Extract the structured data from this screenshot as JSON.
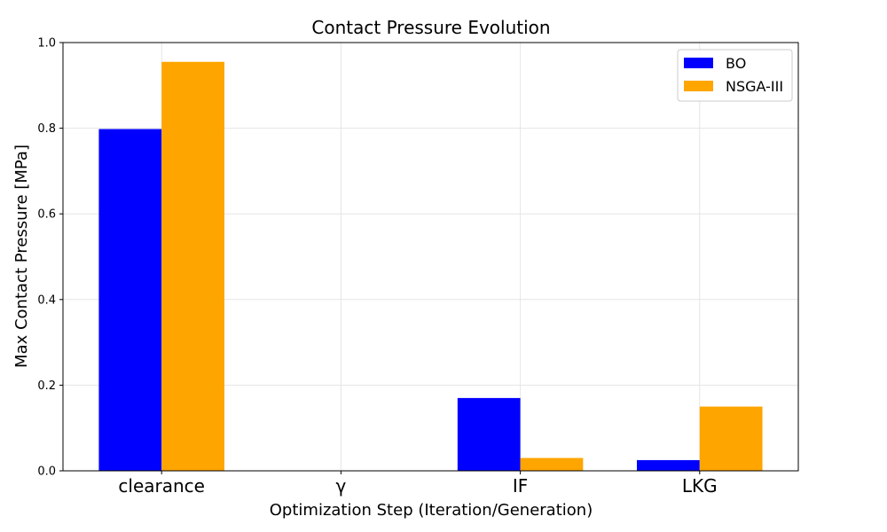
{
  "chart_data": {
    "type": "bar",
    "title": "Contact Pressure Evolution",
    "xlabel": "Optimization Step (Iteration/Generation)",
    "ylabel": "Max Contact Pressure [MPa]",
    "categories": [
      "clearance",
      "γ",
      "IF",
      "LKG"
    ],
    "series": [
      {
        "name": "BO",
        "color": "#0000ff",
        "values": [
          0.798,
          0.0,
          0.17,
          0.025
        ]
      },
      {
        "name": "NSGA-III",
        "color": "#ffa500",
        "values": [
          0.955,
          0.0,
          0.03,
          0.15
        ]
      }
    ],
    "ylim": [
      0.0,
      1.0
    ],
    "yticks": [
      "0.0",
      "0.2",
      "0.4",
      "0.6",
      "0.8",
      "1.0"
    ],
    "grid": true,
    "legend_position": "top-right"
  }
}
